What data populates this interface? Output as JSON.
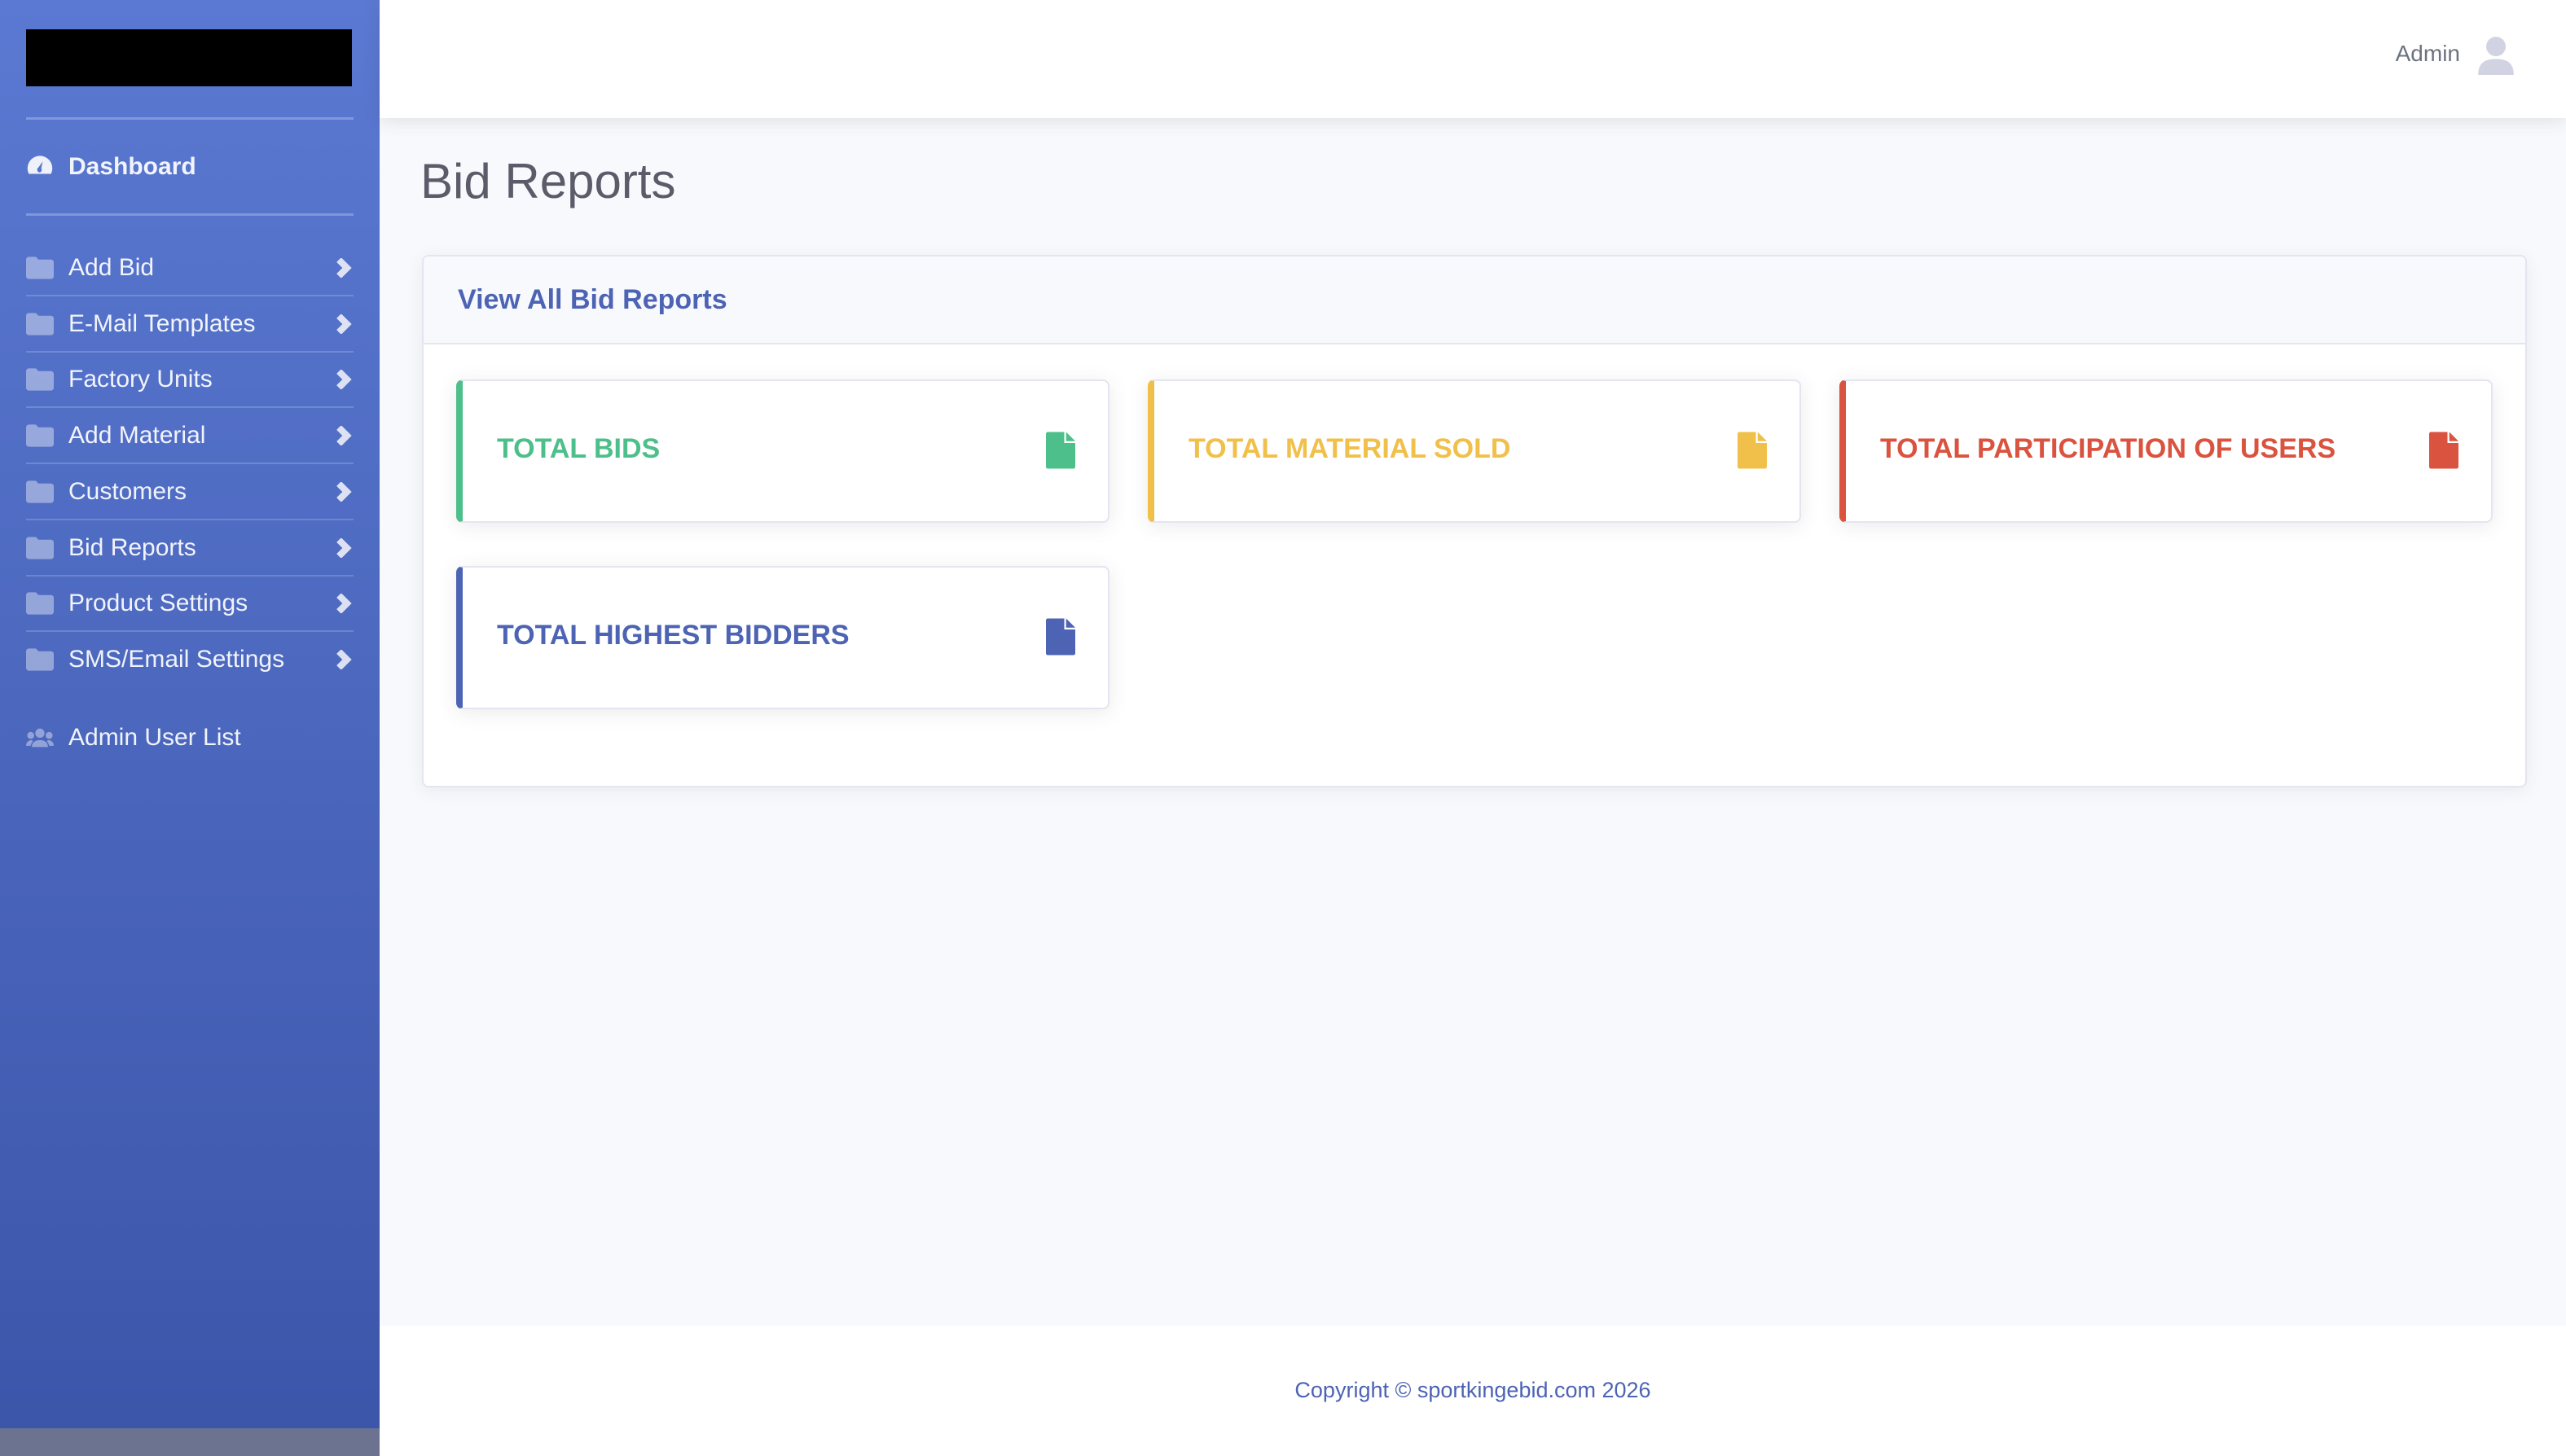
{
  "sidebar": {
    "dashboard": "Dashboard",
    "items": [
      "Add Bid",
      "E-Mail Templates",
      "Factory Units",
      "Add Material",
      "Customers",
      "Bid Reports",
      "Product Settings",
      "SMS/Email Settings"
    ],
    "admin_list": "Admin User List"
  },
  "topbar": {
    "user": "Admin"
  },
  "page": {
    "title": "Bid Reports"
  },
  "card": {
    "header": "View All Bid Reports",
    "stats": [
      {
        "label": "TOTAL BIDS",
        "color": "#4cbf8a"
      },
      {
        "label": "TOTAL MATERIAL SOLD",
        "color": "#f0c04a"
      },
      {
        "label": "TOTAL PARTICIPATION OF USERS",
        "color": "#d9533f"
      },
      {
        "label": "TOTAL HIGHEST BIDDERS",
        "color": "#4d63b3"
      }
    ]
  },
  "footer": {
    "text": "Copyright © sportkingebid.com 2026"
  }
}
